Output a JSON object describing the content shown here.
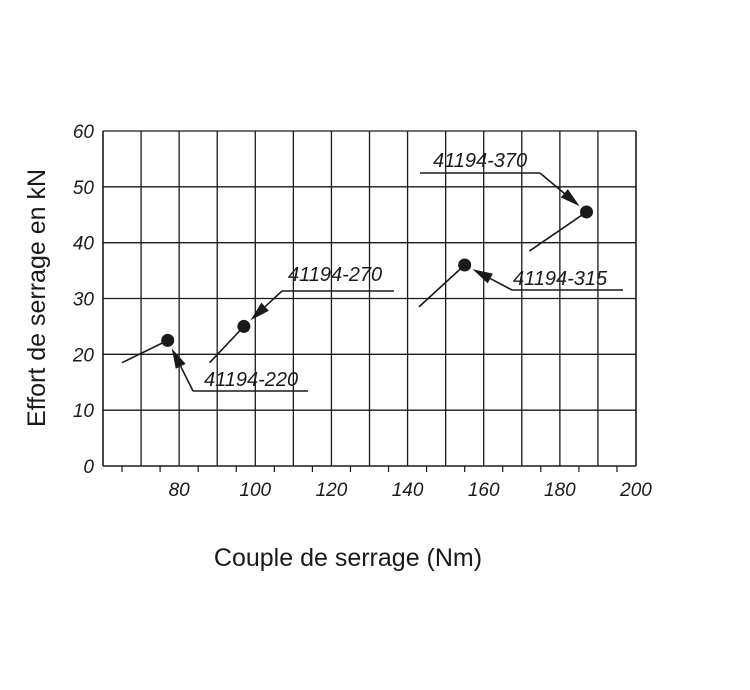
{
  "chart_data": {
    "type": "scatter",
    "xlabel": "Couple de serrage (Nm)",
    "ylabel": "Effort de serrage en kN",
    "xlim": [
      60,
      200
    ],
    "ylim": [
      0,
      60
    ],
    "x_ticks": [
      "80",
      "100",
      "120",
      "140",
      "160",
      "180",
      "200"
    ],
    "y_ticks": [
      "0",
      "10",
      "20",
      "30",
      "40",
      "50",
      "60"
    ],
    "grid": true,
    "points": [
      {
        "x": 77,
        "y": 22.5,
        "label": "41194-220"
      },
      {
        "x": 97,
        "y": 25,
        "label": "41194-270"
      },
      {
        "x": 155,
        "y": 36,
        "label": "41194-315"
      },
      {
        "x": 187,
        "y": 45.5,
        "label": "41194-370"
      }
    ],
    "trend_segments": [
      {
        "from": [
          65,
          18.5
        ],
        "to": [
          77,
          22.5
        ]
      },
      {
        "from": [
          88,
          18.5
        ],
        "to": [
          97,
          25
        ]
      },
      {
        "from": [
          143,
          28.5
        ],
        "to": [
          155,
          36
        ]
      },
      {
        "from": [
          172,
          38.5
        ],
        "to": [
          187,
          45.5
        ]
      }
    ]
  }
}
